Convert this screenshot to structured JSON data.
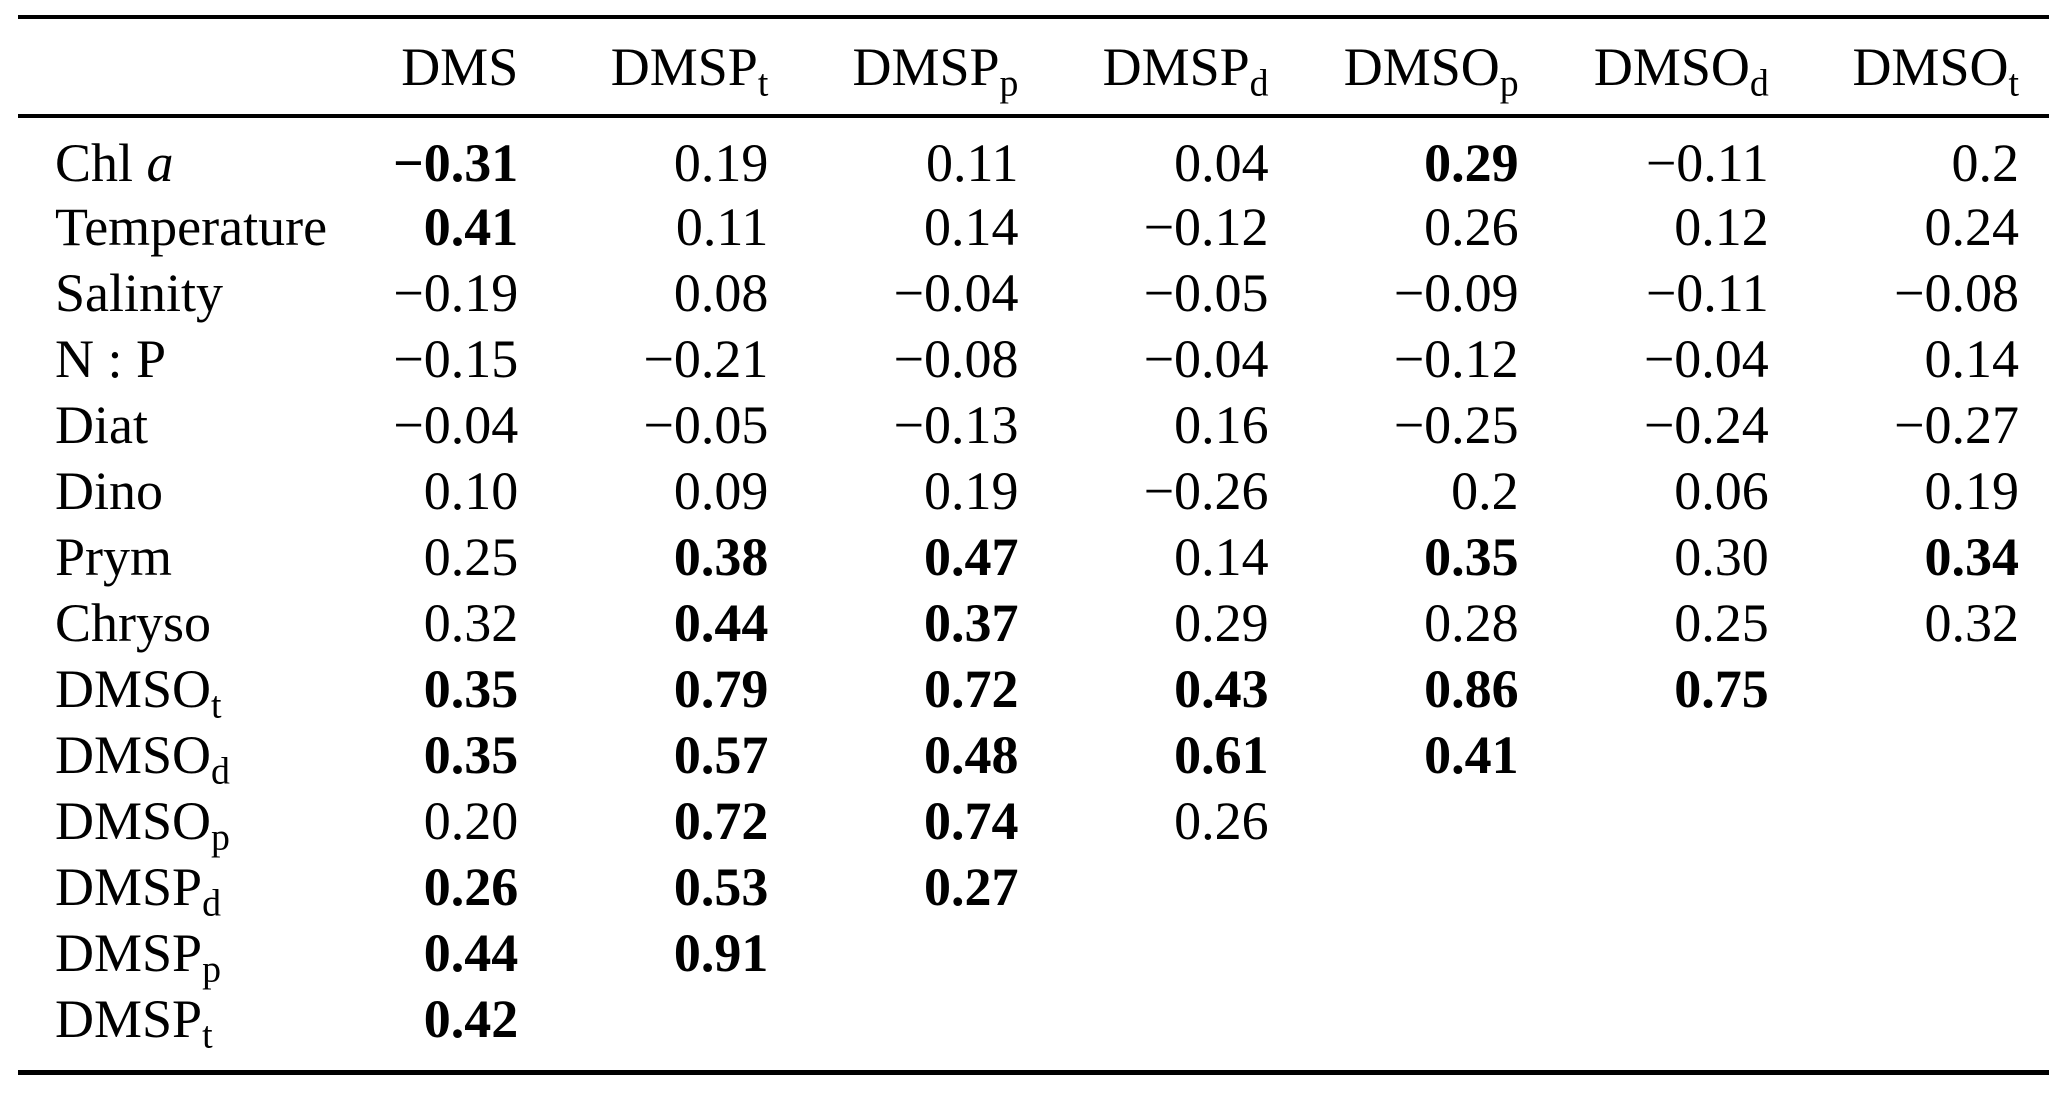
{
  "colors": {
    "background": "#ffffff",
    "text": "#000000",
    "rule": "#000000"
  },
  "table": {
    "headers": [
      {
        "text": "",
        "sub": ""
      },
      {
        "text": "DMS",
        "sub": ""
      },
      {
        "text": "DMSP",
        "sub": "t"
      },
      {
        "text": "DMSP",
        "sub": "p"
      },
      {
        "text": "DMSP",
        "sub": "d"
      },
      {
        "text": "DMSO",
        "sub": "p"
      },
      {
        "text": "DMSO",
        "sub": "d"
      },
      {
        "text": "DMSO",
        "sub": "t"
      }
    ],
    "rows": [
      {
        "label": {
          "text": "Chl ",
          "italic": "a"
        },
        "cells": [
          {
            "v": "−0.31",
            "b": true
          },
          {
            "v": "0.19"
          },
          {
            "v": "0.11"
          },
          {
            "v": "0.04"
          },
          {
            "v": "0.29",
            "b": true
          },
          {
            "v": "−0.11"
          },
          {
            "v": "0.2"
          }
        ]
      },
      {
        "label": {
          "text": "Temperature"
        },
        "cells": [
          {
            "v": "0.41",
            "b": true
          },
          {
            "v": "0.11"
          },
          {
            "v": "0.14"
          },
          {
            "v": "−0.12"
          },
          {
            "v": "0.26"
          },
          {
            "v": "0.12"
          },
          {
            "v": "0.24"
          }
        ]
      },
      {
        "label": {
          "text": "Salinity"
        },
        "cells": [
          {
            "v": "−0.19"
          },
          {
            "v": "0.08"
          },
          {
            "v": "−0.04"
          },
          {
            "v": "−0.05"
          },
          {
            "v": "−0.09"
          },
          {
            "v": "−0.11"
          },
          {
            "v": "−0.08"
          }
        ]
      },
      {
        "label": {
          "text": "N : P"
        },
        "cells": [
          {
            "v": "−0.15"
          },
          {
            "v": "−0.21"
          },
          {
            "v": "−0.08"
          },
          {
            "v": "−0.04"
          },
          {
            "v": "−0.12"
          },
          {
            "v": "−0.04"
          },
          {
            "v": "0.14"
          }
        ]
      },
      {
        "label": {
          "text": "Diat"
        },
        "cells": [
          {
            "v": "−0.04"
          },
          {
            "v": "−0.05"
          },
          {
            "v": "−0.13"
          },
          {
            "v": "0.16"
          },
          {
            "v": "−0.25"
          },
          {
            "v": "−0.24"
          },
          {
            "v": "−0.27"
          }
        ]
      },
      {
        "label": {
          "text": "Dino"
        },
        "cells": [
          {
            "v": "0.10"
          },
          {
            "v": "0.09"
          },
          {
            "v": "0.19"
          },
          {
            "v": "−0.26"
          },
          {
            "v": "0.2"
          },
          {
            "v": "0.06"
          },
          {
            "v": "0.19"
          }
        ]
      },
      {
        "label": {
          "text": "Prym"
        },
        "cells": [
          {
            "v": "0.25"
          },
          {
            "v": "0.38",
            "b": true
          },
          {
            "v": "0.47",
            "b": true
          },
          {
            "v": "0.14"
          },
          {
            "v": "0.35",
            "b": true
          },
          {
            "v": "0.30"
          },
          {
            "v": "0.34",
            "b": true
          }
        ]
      },
      {
        "label": {
          "text": "Chryso"
        },
        "cells": [
          {
            "v": "0.32"
          },
          {
            "v": "0.44",
            "b": true
          },
          {
            "v": "0.37",
            "b": true
          },
          {
            "v": "0.29"
          },
          {
            "v": "0.28"
          },
          {
            "v": "0.25"
          },
          {
            "v": "0.32"
          }
        ]
      },
      {
        "label": {
          "text": "DMSO",
          "sub": "t"
        },
        "cells": [
          {
            "v": "0.35",
            "b": true
          },
          {
            "v": "0.79",
            "b": true
          },
          {
            "v": "0.72",
            "b": true
          },
          {
            "v": "0.43",
            "b": true
          },
          {
            "v": "0.86",
            "b": true
          },
          {
            "v": "0.75",
            "b": true
          },
          {
            "v": ""
          }
        ]
      },
      {
        "label": {
          "text": "DMSO",
          "sub": "d"
        },
        "cells": [
          {
            "v": "0.35",
            "b": true
          },
          {
            "v": "0.57",
            "b": true
          },
          {
            "v": "0.48",
            "b": true
          },
          {
            "v": "0.61",
            "b": true
          },
          {
            "v": "0.41",
            "b": true
          },
          {
            "v": ""
          },
          {
            "v": ""
          }
        ]
      },
      {
        "label": {
          "text": "DMSO",
          "sub": "p"
        },
        "cells": [
          {
            "v": "0.20"
          },
          {
            "v": "0.72",
            "b": true
          },
          {
            "v": "0.74",
            "b": true
          },
          {
            "v": "0.26"
          },
          {
            "v": ""
          },
          {
            "v": ""
          },
          {
            "v": ""
          }
        ]
      },
      {
        "label": {
          "text": "DMSP",
          "sub": "d"
        },
        "cells": [
          {
            "v": "0.26",
            "b": true
          },
          {
            "v": "0.53",
            "b": true
          },
          {
            "v": "0.27",
            "b": true
          },
          {
            "v": ""
          },
          {
            "v": ""
          },
          {
            "v": ""
          },
          {
            "v": ""
          }
        ]
      },
      {
        "label": {
          "text": "DMSP",
          "sub": "p"
        },
        "cells": [
          {
            "v": "0.44",
            "b": true
          },
          {
            "v": "0.91",
            "b": true
          },
          {
            "v": ""
          },
          {
            "v": ""
          },
          {
            "v": ""
          },
          {
            "v": ""
          },
          {
            "v": ""
          }
        ]
      },
      {
        "label": {
          "text": "DMSP",
          "sub": "t"
        },
        "cells": [
          {
            "v": "0.42",
            "b": true
          },
          {
            "v": ""
          },
          {
            "v": ""
          },
          {
            "v": ""
          },
          {
            "v": ""
          },
          {
            "v": ""
          },
          {
            "v": ""
          }
        ]
      }
    ]
  }
}
